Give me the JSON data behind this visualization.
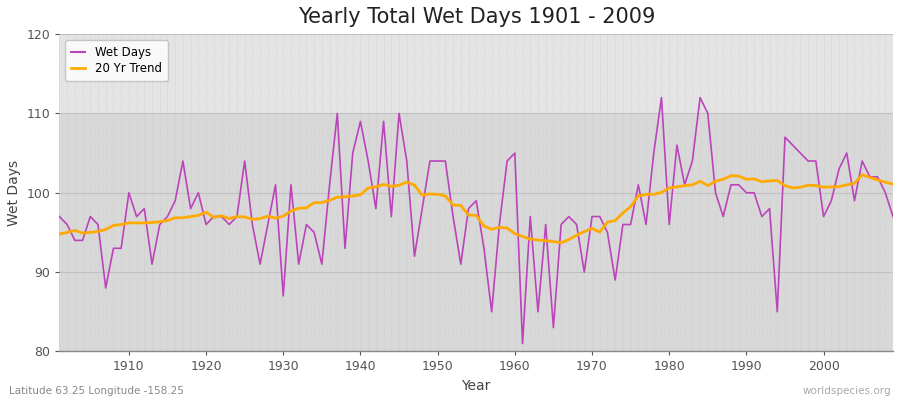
{
  "title": "Yearly Total Wet Days 1901 - 2009",
  "xlabel": "Year",
  "ylabel": "Wet Days",
  "subtitle": "Latitude 63.25 Longitude -158.25",
  "watermark": "worldspecies.org",
  "line_color": "#bb44bb",
  "trend_color": "#ffaa00",
  "bg_color_lower": "#dcdcdc",
  "bg_color_upper": "#e8e8e8",
  "ylim": [
    80,
    120
  ],
  "xlim": [
    1901,
    2009
  ],
  "yticks": [
    80,
    90,
    100,
    110,
    120
  ],
  "xticks": [
    1910,
    1920,
    1930,
    1940,
    1950,
    1960,
    1970,
    1980,
    1990,
    2000
  ],
  "wet_days": [
    97,
    96,
    94,
    94,
    97,
    96,
    88,
    93,
    93,
    100,
    97,
    98,
    91,
    96,
    97,
    99,
    104,
    98,
    100,
    96,
    97,
    97,
    96,
    97,
    104,
    96,
    91,
    96,
    101,
    87,
    101,
    91,
    96,
    95,
    91,
    101,
    110,
    93,
    105,
    109,
    104,
    98,
    109,
    97,
    110,
    104,
    92,
    98,
    104,
    104,
    104,
    97,
    91,
    98,
    99,
    93,
    85,
    96,
    104,
    105,
    81,
    97,
    85,
    96,
    83,
    96,
    97,
    96,
    90,
    97,
    97,
    95,
    89,
    96,
    96,
    101,
    96,
    105,
    112,
    96,
    106,
    101,
    104,
    112,
    110,
    100,
    97,
    101,
    101,
    100,
    100,
    97,
    98,
    85,
    107,
    106,
    105,
    104,
    104,
    97,
    99,
    103,
    105,
    99,
    104,
    102,
    102,
    100,
    97
  ],
  "trend_window": 20
}
